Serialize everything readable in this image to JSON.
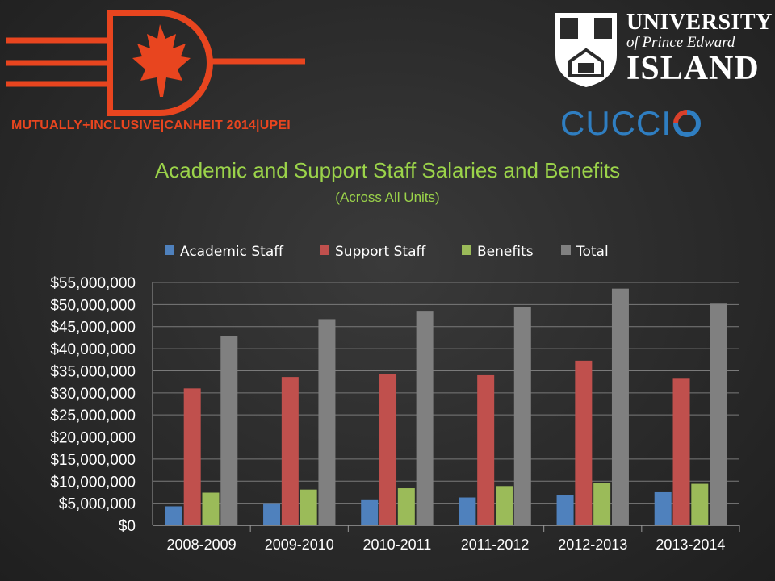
{
  "header": {
    "brand_text": "MUTUALLY+INCLUSIVE|CANHEIT 2014|UPEI",
    "upei_line1": "UNIVERSITY",
    "upei_line2": "of Prince Edward",
    "upei_line3": "ISLAND",
    "cuccio_text": "CUCCI",
    "brand_color": "#e8451f"
  },
  "chart_data": {
    "type": "bar",
    "title": "Academic and Support Staff Salaries and Benefits",
    "subtitle": "(Across All Units)",
    "categories": [
      "2008-2009",
      "2009-2010",
      "2010-2011",
      "2011-2012",
      "2012-2013",
      "2013-2014"
    ],
    "series": [
      {
        "name": "Academic Staff",
        "color": "#4f81bd",
        "values": [
          4300000,
          5000000,
          5700000,
          6300000,
          6800000,
          7500000
        ]
      },
      {
        "name": "Support Staff",
        "color": "#c0504d",
        "values": [
          31000000,
          33600000,
          34200000,
          34000000,
          37300000,
          33200000
        ]
      },
      {
        "name": "Benefits",
        "color": "#9bbb59",
        "values": [
          7400000,
          8100000,
          8400000,
          8900000,
          9600000,
          9400000
        ]
      },
      {
        "name": "Total",
        "color": "#808080",
        "values": [
          42800000,
          46700000,
          48400000,
          49400000,
          53600000,
          50200000
        ]
      }
    ],
    "ylim": [
      0,
      55000000
    ],
    "yticks": [
      "$0",
      "$5,000,000",
      "$10,000,000",
      "$15,000,000",
      "$20,000,000",
      "$25,000,000",
      "$30,000,000",
      "$35,000,000",
      "$40,000,000",
      "$45,000,000",
      "$50,000,000",
      "$55,000,000"
    ],
    "grid": true,
    "legend_position": "top"
  }
}
